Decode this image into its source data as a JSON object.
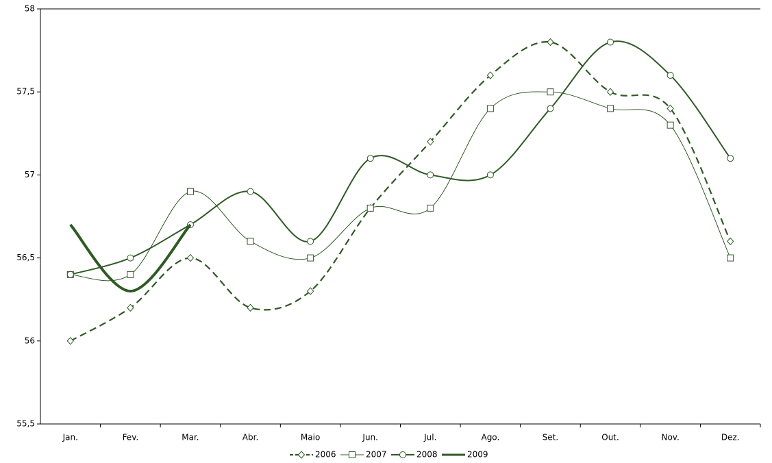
{
  "chart_data": {
    "type": "line",
    "categories": [
      "Jan.",
      "Fev.",
      "Mar.",
      "Abr.",
      "Maio",
      "Jun.",
      "Jul.",
      "Ago.",
      "Set.",
      "Out.",
      "Nov.",
      "Dez."
    ],
    "series": [
      {
        "name": "2006",
        "color": "#2f5a24",
        "values": [
          56.0,
          56.2,
          56.5,
          56.2,
          56.3,
          56.8,
          57.2,
          57.6,
          57.8,
          57.5,
          57.4,
          56.6
        ]
      },
      {
        "name": "2007",
        "color": "#2f5a24",
        "values": [
          56.4,
          56.4,
          56.9,
          56.6,
          56.5,
          56.8,
          56.8,
          57.4,
          57.5,
          57.4,
          57.3,
          56.5
        ]
      },
      {
        "name": "2008",
        "color": "#2f5a24",
        "values": [
          56.4,
          56.5,
          56.7,
          56.9,
          56.6,
          57.1,
          57.0,
          57.0,
          57.4,
          57.8,
          57.6,
          57.1
        ]
      },
      {
        "name": "2009",
        "color": "#2f5a24",
        "values": [
          56.7,
          56.3,
          56.7,
          null,
          null,
          null,
          null,
          null,
          null,
          null,
          null,
          null
        ]
      }
    ],
    "ylim": [
      55.5,
      58
    ],
    "yticks": [
      {
        "value": 55.5,
        "label": "55,5"
      },
      56,
      {
        "value": 56.5,
        "label": "56,5"
      },
      57,
      {
        "value": 57.5,
        "label": "57,5"
      },
      58
    ],
    "grid": false,
    "legend": "bottom"
  }
}
